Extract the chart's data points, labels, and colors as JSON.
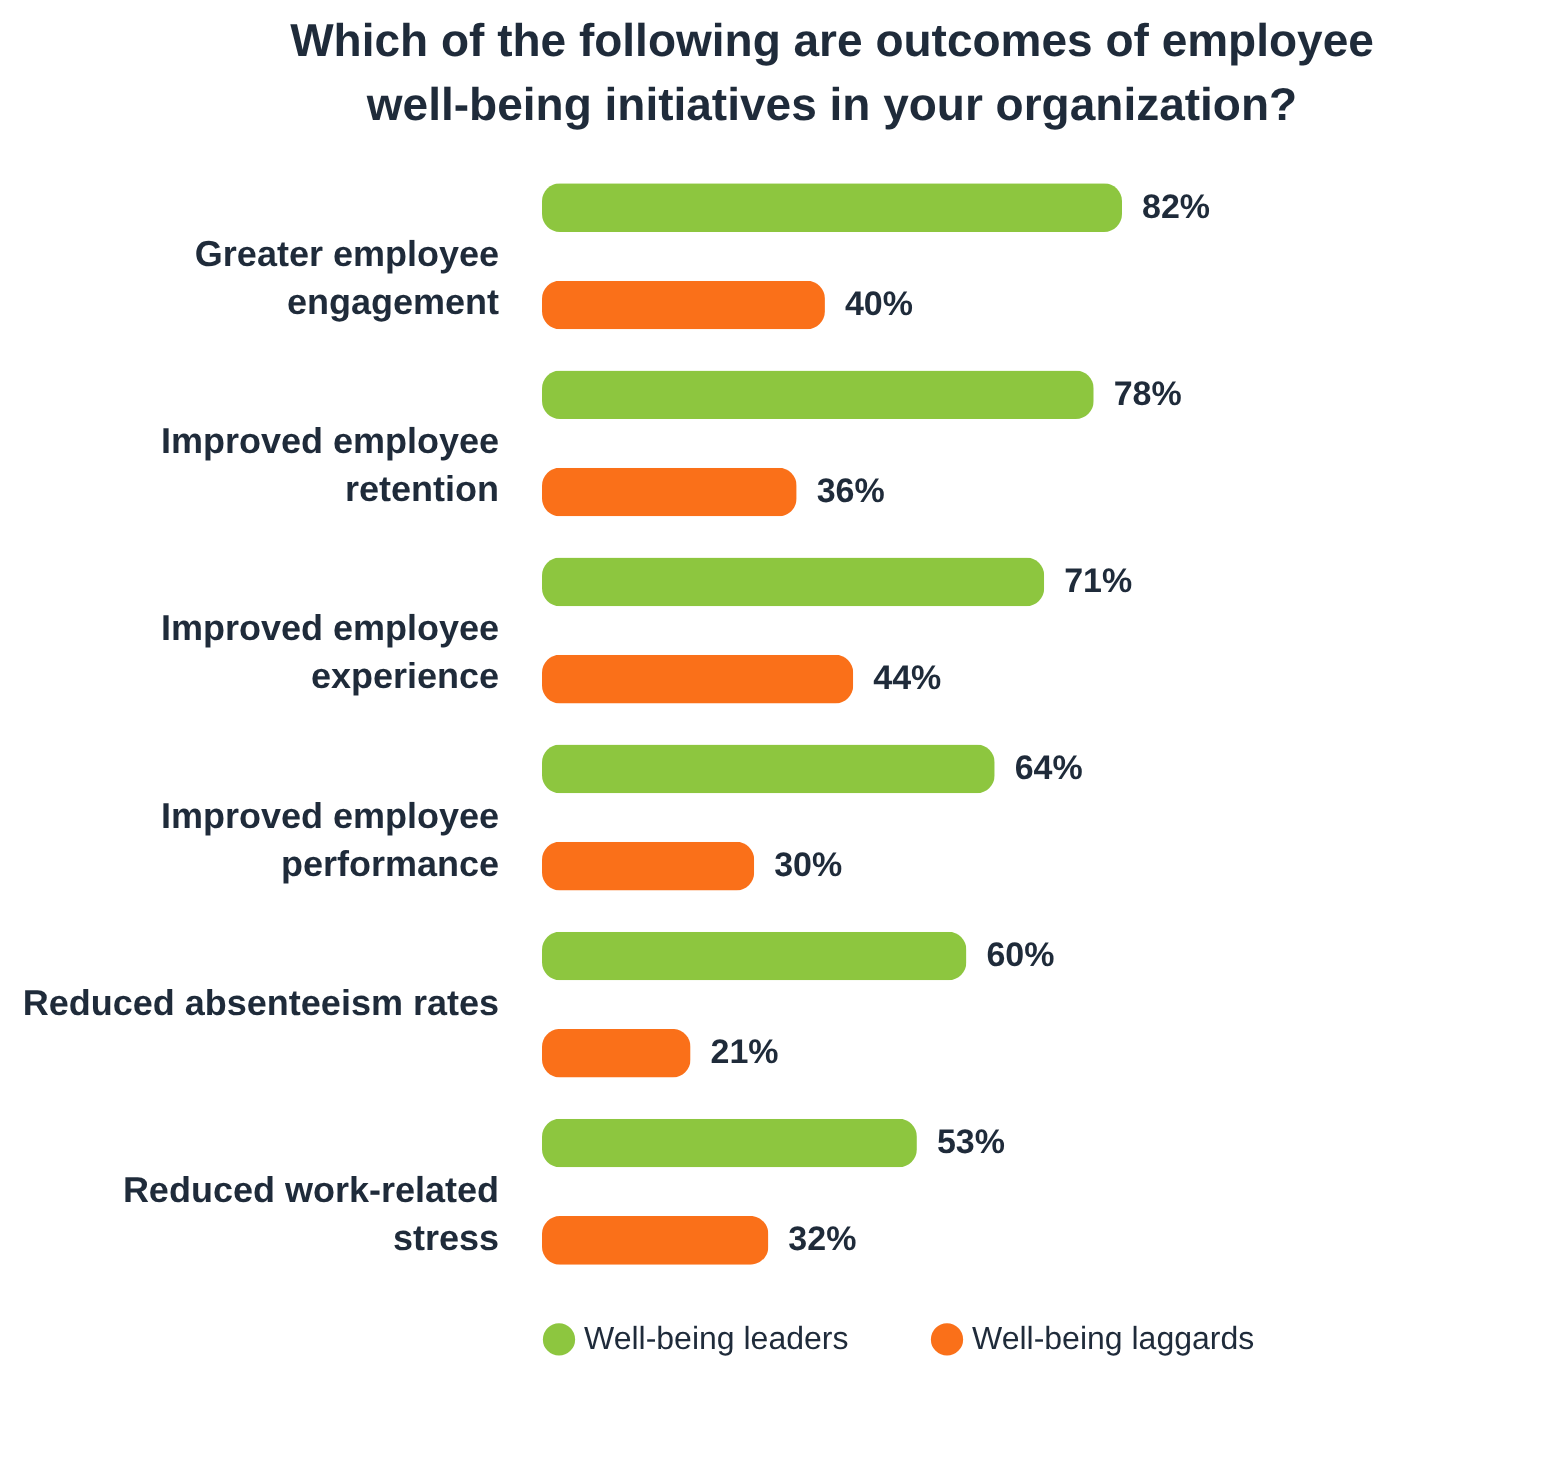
{
  "chart_data": {
    "type": "bar",
    "orientation": "horizontal",
    "title": "Which of the following are outcomes of employee well-being initiatives in your organization?",
    "categories": [
      "Greater employee engagement",
      "Improved employee retention",
      "Improved employee experience",
      "Improved employee performance",
      "Reduced absenteeism rates",
      "Reduced work-related stress"
    ],
    "series": [
      {
        "name": "Well-being leaders",
        "color": "#8dc63f",
        "values": [
          82,
          78,
          71,
          64,
          60,
          53
        ],
        "value_labels": [
          "82%",
          "78%",
          "71%",
          "64%",
          "60%",
          "53%"
        ]
      },
      {
        "name": "Well-being laggards",
        "color": "#fa7019",
        "values": [
          40,
          36,
          44,
          30,
          21,
          32
        ],
        "value_labels": [
          "40%",
          "36%",
          "44%",
          "30%",
          "21%",
          "32%"
        ]
      }
    ],
    "tick_labels": "y",
    "legend": "bottom"
  }
}
